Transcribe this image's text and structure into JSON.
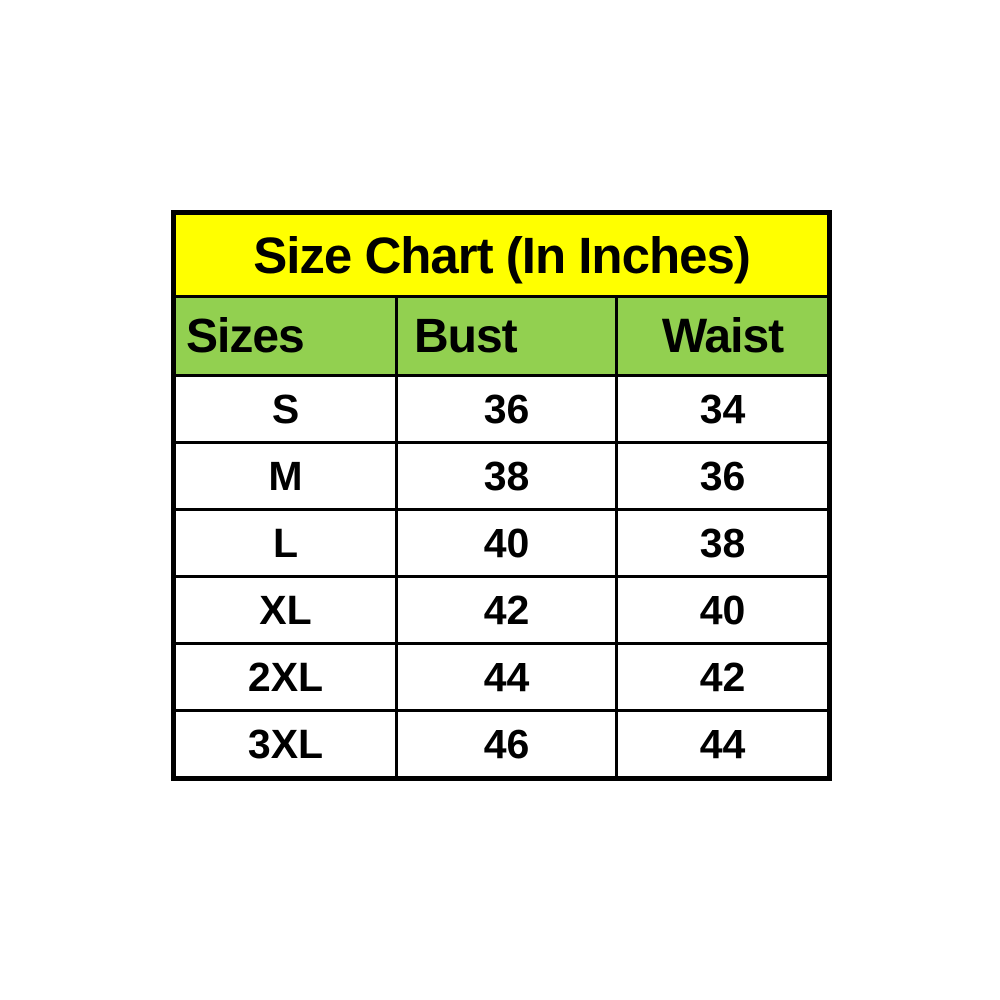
{
  "page": {
    "background_color": "#ffffff"
  },
  "table_style": {
    "title_bg_color": "#ffff00",
    "header_bg_color": "#92d050",
    "border_color": "#000000",
    "text_color": "#000000"
  },
  "chart_data": {
    "type": "table",
    "title": "Size Chart (In Inches)",
    "columns": [
      "Sizes",
      "Bust",
      "Waist"
    ],
    "rows": [
      [
        "S",
        "36",
        "34"
      ],
      [
        "M",
        "38",
        "36"
      ],
      [
        "L",
        "40",
        "38"
      ],
      [
        "XL",
        "42",
        "40"
      ],
      [
        "2XL",
        "44",
        "42"
      ],
      [
        "3XL",
        "46",
        "44"
      ]
    ]
  }
}
